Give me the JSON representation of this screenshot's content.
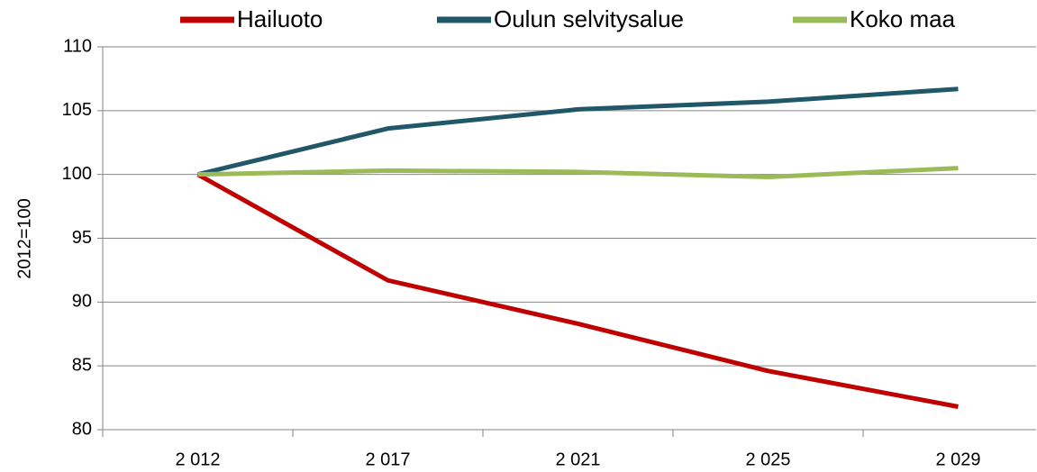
{
  "chart_data": {
    "type": "line",
    "categories": [
      "2 012",
      "2 017",
      "2 021",
      "2 025",
      "2 029"
    ],
    "series": [
      {
        "name": "Hailuoto",
        "color": "#c00000",
        "values": [
          100,
          91.7,
          88.3,
          84.6,
          81.8
        ]
      },
      {
        "name": "Oulun selvitysalue",
        "color": "#215868",
        "values": [
          100,
          103.6,
          105.1,
          105.7,
          106.7
        ]
      },
      {
        "name": "Koko maa",
        "color": "#9bbb59",
        "values": [
          100,
          100.3,
          100.2,
          99.8,
          100.5
        ]
      }
    ],
    "ylabel": "2012=100",
    "ylim": [
      80,
      110
    ],
    "yticks": [
      80,
      85,
      90,
      95,
      100,
      105,
      110
    ],
    "grid": true,
    "legend": "top"
  }
}
